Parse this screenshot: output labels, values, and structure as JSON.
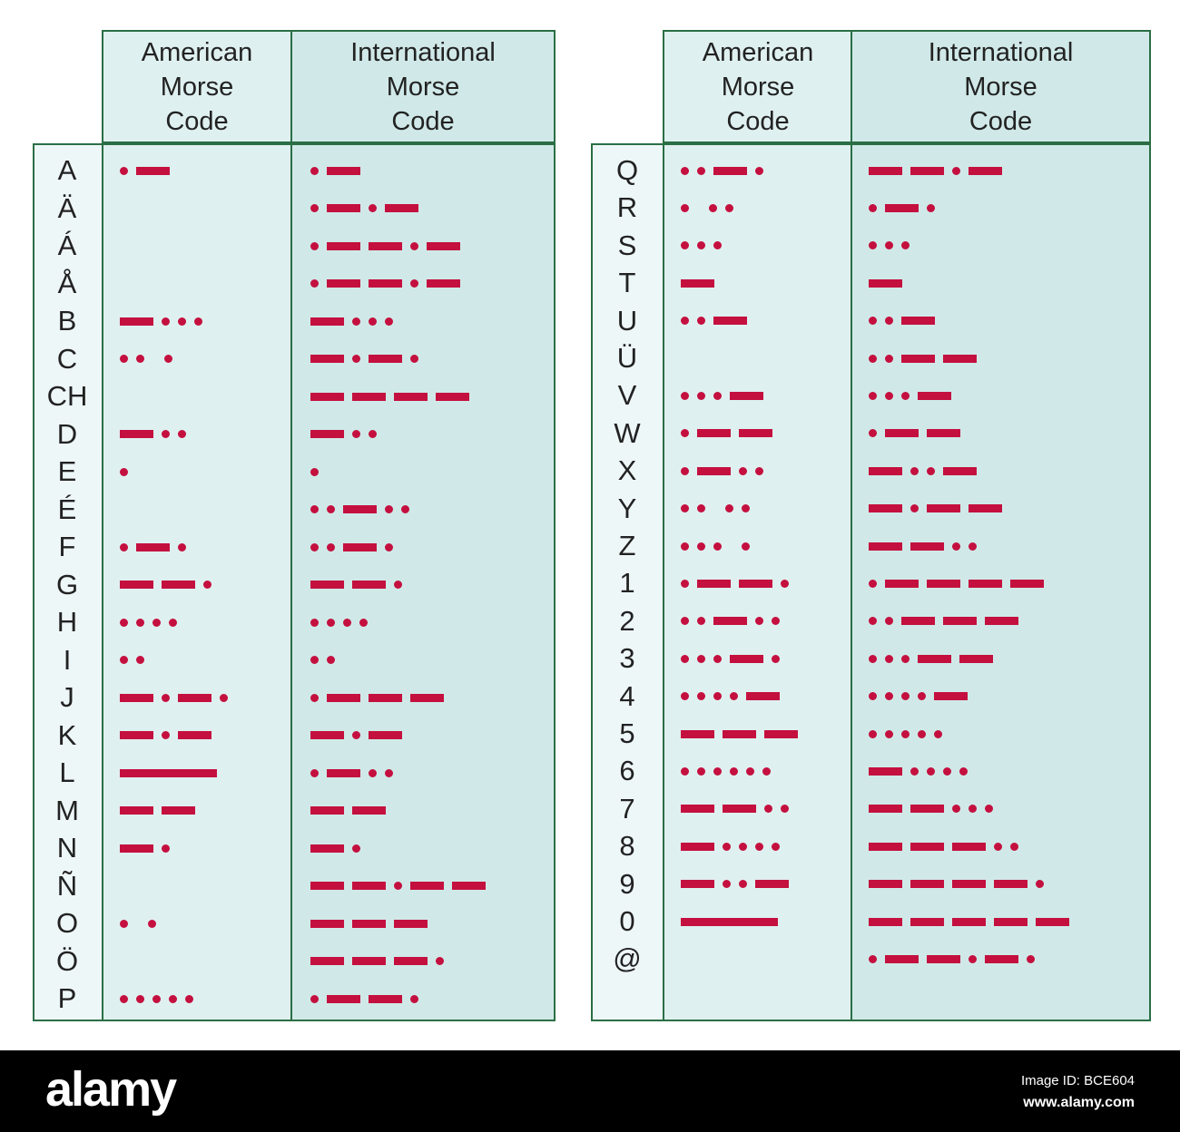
{
  "headers": {
    "american": "American\nMorse\nCode",
    "international": "International\nMorse\nCode"
  },
  "colors": {
    "border": "#2b6e45",
    "code": "#c4103f",
    "american_bg": "#dff0f0",
    "international_bg": "#d0e9e8",
    "letter_bg": "#eef7f8"
  },
  "legend_note": "'.' = dot, '-' = dash, 'L' = long dash, ' ' = space",
  "left_table": [
    {
      "letter": "A",
      "american": ".-",
      "international": ".-"
    },
    {
      "letter": "Ä",
      "american": "",
      "international": ".-.-"
    },
    {
      "letter": "Á",
      "american": "",
      "international": ".--.-"
    },
    {
      "letter": "Å",
      "american": "",
      "international": ".--.-"
    },
    {
      "letter": "B",
      "american": "-...",
      "international": "-..."
    },
    {
      "letter": "C",
      "american": ".. .",
      "international": "-.-."
    },
    {
      "letter": "CH",
      "american": "",
      "international": "----"
    },
    {
      "letter": "D",
      "american": "-..",
      "international": "-.."
    },
    {
      "letter": "E",
      "american": ".",
      "international": "."
    },
    {
      "letter": "É",
      "american": "",
      "international": "..-.."
    },
    {
      "letter": "F",
      "american": ".-.",
      "international": "..-."
    },
    {
      "letter": "G",
      "american": "--.",
      "international": "--."
    },
    {
      "letter": "H",
      "american": "....",
      "international": "...."
    },
    {
      "letter": "I",
      "american": "..",
      "international": ".."
    },
    {
      "letter": "J",
      "american": "-.-.",
      "international": ".---"
    },
    {
      "letter": "K",
      "american": "-.-",
      "international": "-.-"
    },
    {
      "letter": "L",
      "american": "L",
      "international": ".-.."
    },
    {
      "letter": "M",
      "american": "--",
      "international": "--"
    },
    {
      "letter": "N",
      "american": "-.",
      "international": "-."
    },
    {
      "letter": "Ñ",
      "american": "",
      "international": "--.--"
    },
    {
      "letter": "O",
      "american": ". .",
      "international": "---"
    },
    {
      "letter": "Ö",
      "american": "",
      "international": "---."
    },
    {
      "letter": "P",
      "american": ".....",
      "international": ".--."
    }
  ],
  "right_table": [
    {
      "letter": "Q",
      "american": "..-.",
      "international": "--.-"
    },
    {
      "letter": "R",
      "american": ". ..",
      "international": ".-."
    },
    {
      "letter": "S",
      "american": "...",
      "international": "..."
    },
    {
      "letter": "T",
      "american": "-",
      "international": "-"
    },
    {
      "letter": "U",
      "american": "..-",
      "international": "..-"
    },
    {
      "letter": "Ü",
      "american": "",
      "international": "..--"
    },
    {
      "letter": "V",
      "american": "...-",
      "international": "...-"
    },
    {
      "letter": "W",
      "american": ".--",
      "international": ".--"
    },
    {
      "letter": "X",
      "american": ".-..",
      "international": "-..-"
    },
    {
      "letter": "Y",
      "american": ".. ..",
      "international": "-.--"
    },
    {
      "letter": "Z",
      "american": "... .",
      "international": "--.."
    },
    {
      "letter": "1",
      "american": ".--.",
      "international": ".----"
    },
    {
      "letter": "2",
      "american": "..-..",
      "international": "..---"
    },
    {
      "letter": "3",
      "american": "...-.",
      "international": "...--"
    },
    {
      "letter": "4",
      "american": "....-",
      "international": "....-"
    },
    {
      "letter": "5",
      "american": "---",
      "international": "....."
    },
    {
      "letter": "6",
      "american": "......",
      "international": "-...."
    },
    {
      "letter": "7",
      "american": "--..",
      "international": "--..."
    },
    {
      "letter": "8",
      "american": "-....",
      "international": "---.."
    },
    {
      "letter": "9",
      "american": "-..-",
      "international": "----."
    },
    {
      "letter": "0",
      "american": "L",
      "international": "-----"
    },
    {
      "letter": "@",
      "american": "",
      "international": ".--.-."
    }
  ],
  "footer": {
    "logo": "alamy",
    "image_id": "Image ID: BCE604",
    "url": "www.alamy.com"
  }
}
